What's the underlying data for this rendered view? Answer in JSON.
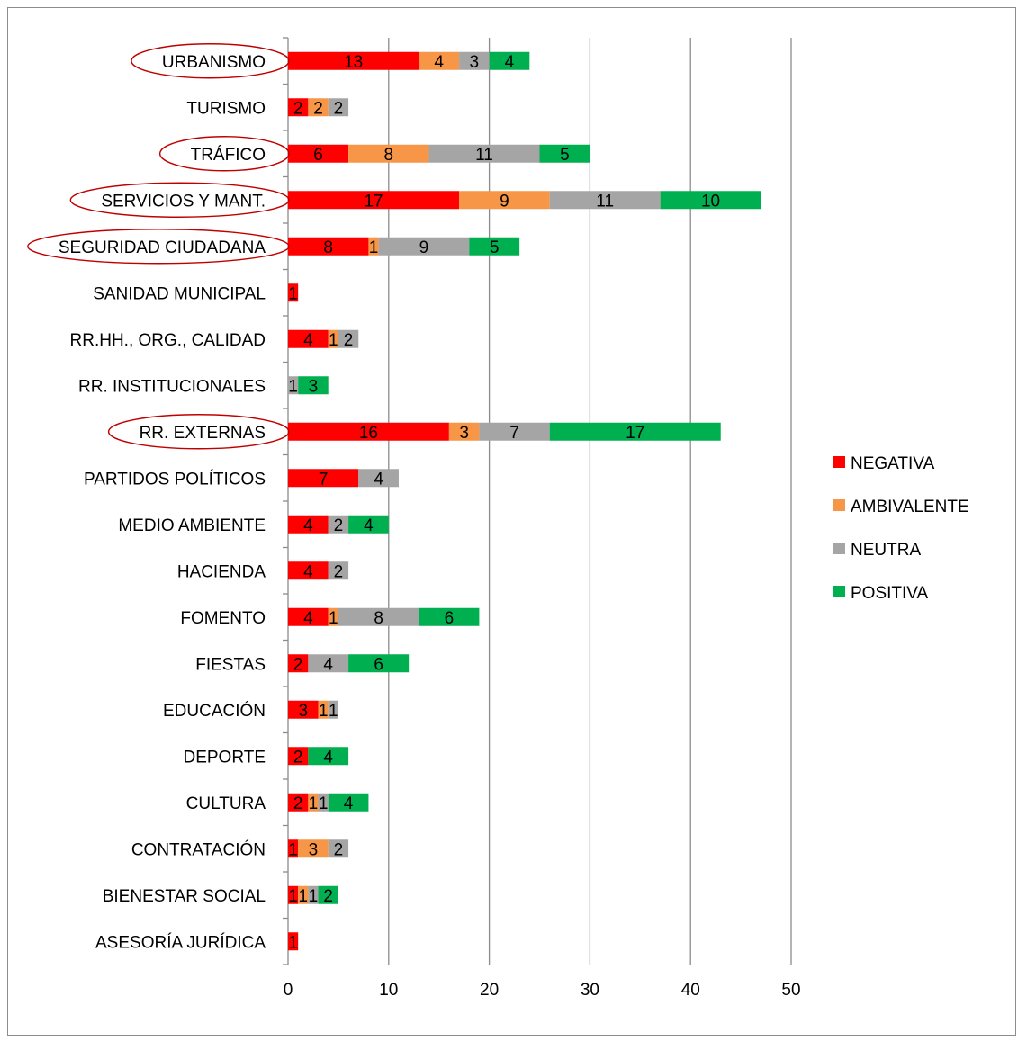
{
  "chart_data": {
    "type": "bar",
    "orientation": "horizontal",
    "stacked": true,
    "title": "",
    "xlabel": "",
    "ylabel": "",
    "xlim": [
      0,
      50
    ],
    "x_ticks": [
      "0",
      "10",
      "20",
      "30",
      "40",
      "50"
    ],
    "grid": true,
    "legend_position": "right",
    "categories": [
      "URBANISMO",
      "TURISMO",
      "TRÁFICO",
      "SERVICIOS Y MANT.",
      "SEGURIDAD CIUDADANA",
      "SANIDAD MUNICIPAL",
      "RR.HH., ORG., CALIDAD",
      "RR. INSTITUCIONALES",
      "RR. EXTERNAS",
      "PARTIDOS POLÍTICOS",
      "MEDIO AMBIENTE",
      "HACIENDA",
      "FOMENTO",
      "FIESTAS",
      "EDUCACIÓN",
      "DEPORTE",
      "CULTURA",
      "CONTRATACIÓN",
      "BIENESTAR SOCIAL",
      "ASESORÍA JURÍDICA"
    ],
    "highlighted_categories": [
      "URBANISMO",
      "TRÁFICO",
      "SERVICIOS Y MANT.",
      "SEGURIDAD CIUDADANA",
      "RR. EXTERNAS"
    ],
    "series": [
      {
        "name": "NEGATIVA",
        "color": "#ff0000",
        "values": [
          13,
          2,
          6,
          17,
          8,
          1,
          4,
          0,
          16,
          7,
          4,
          4,
          4,
          2,
          3,
          2,
          2,
          1,
          1,
          1
        ]
      },
      {
        "name": "AMBIVALENTE",
        "color": "#f79646",
        "values": [
          4,
          2,
          8,
          9,
          1,
          0,
          1,
          0,
          3,
          0,
          0,
          0,
          1,
          0,
          1,
          0,
          1,
          3,
          1,
          0
        ]
      },
      {
        "name": "NEUTRA",
        "color": "#a5a5a5",
        "values": [
          3,
          2,
          11,
          11,
          9,
          0,
          2,
          1,
          7,
          4,
          2,
          2,
          8,
          4,
          1,
          0,
          1,
          2,
          1,
          0
        ]
      },
      {
        "name": "POSITIVA",
        "color": "#00b050",
        "values": [
          4,
          0,
          5,
          10,
          5,
          0,
          0,
          3,
          17,
          0,
          4,
          0,
          6,
          6,
          0,
          4,
          4,
          0,
          2,
          0
        ]
      }
    ]
  }
}
